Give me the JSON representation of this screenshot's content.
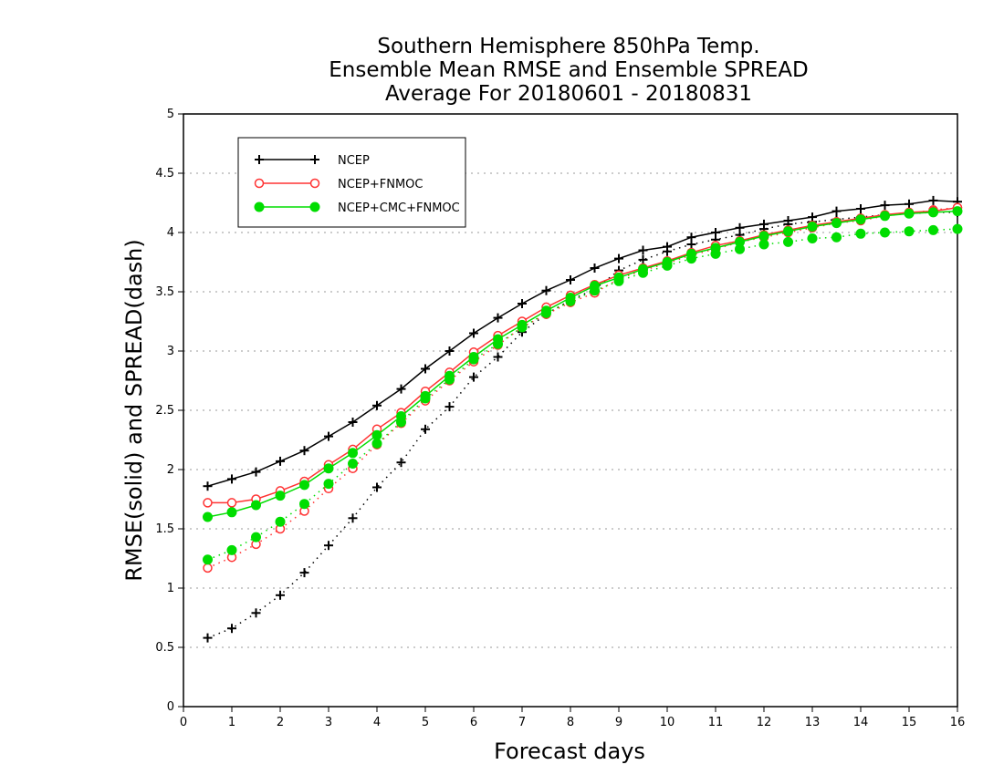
{
  "chart_data": {
    "type": "line",
    "title": [
      "Southern Hemisphere 850hPa Temp.",
      "Ensemble Mean RMSE and Ensemble SPREAD",
      "Average For 20180601 - 20180831"
    ],
    "xlabel": "Forecast days",
    "ylabel": "RMSE(solid) and SPREAD(dash)",
    "xlim": [
      0,
      16
    ],
    "ylim": [
      0,
      5
    ],
    "xticks": [
      0,
      1,
      2,
      3,
      4,
      5,
      6,
      7,
      8,
      9,
      10,
      11,
      12,
      13,
      14,
      15,
      16
    ],
    "xtick_labels": [
      "0",
      "1",
      "2",
      "3",
      "4",
      "5",
      "6",
      "7",
      "8",
      "9",
      "10",
      "11",
      "12",
      "13",
      "14",
      "15",
      "16"
    ],
    "yticks": [
      0,
      0.5,
      1,
      1.5,
      2,
      2.5,
      3,
      3.5,
      4,
      4.5,
      5
    ],
    "ytick_labels": [
      "0",
      "0.5",
      "1",
      "1.5",
      "2",
      "2.5",
      "3",
      "3.5",
      "4",
      "4.5",
      "5"
    ],
    "grid": "horizontal-dotted",
    "legend_position": "top-left",
    "x": [
      0.5,
      1,
      1.5,
      2,
      2.5,
      3,
      3.5,
      4,
      4.5,
      5,
      5.5,
      6,
      6.5,
      7,
      7.5,
      8,
      8.5,
      9,
      9.5,
      10,
      10.5,
      11,
      11.5,
      12,
      12.5,
      13,
      13.5,
      14,
      14.5,
      15,
      15.5,
      16
    ],
    "series": [
      {
        "name": "NCEP",
        "color": "#000000",
        "marker": "plus",
        "rmse": [
          1.86,
          1.92,
          1.98,
          2.07,
          2.16,
          2.28,
          2.4,
          2.54,
          2.68,
          2.85,
          3.0,
          3.15,
          3.28,
          3.4,
          3.51,
          3.6,
          3.7,
          3.78,
          3.85,
          3.88,
          3.96,
          4.0,
          4.04,
          4.07,
          4.1,
          4.13,
          4.18,
          4.2,
          4.23,
          4.24,
          4.27,
          4.26
        ],
        "spread": [
          0.58,
          0.66,
          0.79,
          0.94,
          1.13,
          1.36,
          1.59,
          1.85,
          2.06,
          2.34,
          2.53,
          2.78,
          2.95,
          3.16,
          3.31,
          3.43,
          3.52,
          3.68,
          3.77,
          3.84,
          3.9,
          3.94,
          3.98,
          4.03,
          4.07,
          4.09,
          4.11,
          4.13,
          4.15,
          4.16,
          4.17,
          4.17
        ]
      },
      {
        "name": "NCEP+FNMOC",
        "color": "#ff3333",
        "marker": "open-circle",
        "rmse": [
          1.72,
          1.72,
          1.75,
          1.82,
          1.9,
          2.04,
          2.17,
          2.34,
          2.48,
          2.66,
          2.82,
          2.99,
          3.13,
          3.25,
          3.37,
          3.47,
          3.56,
          3.64,
          3.7,
          3.76,
          3.83,
          3.89,
          3.93,
          3.98,
          4.02,
          4.06,
          4.09,
          4.12,
          4.15,
          4.17,
          4.18,
          4.21
        ],
        "spread": [
          1.17,
          1.26,
          1.37,
          1.5,
          1.65,
          1.84,
          2.01,
          2.21,
          2.39,
          2.58,
          2.75,
          2.91,
          3.05,
          3.2,
          3.31,
          3.41,
          3.49,
          3.61,
          3.68,
          3.74,
          3.81,
          3.86,
          3.92,
          3.96,
          4.0,
          4.04,
          4.08,
          4.1,
          4.14,
          4.16,
          4.19,
          4.21
        ]
      },
      {
        "name": "NCEP+CMC+FNMOC",
        "color": "#00dd00",
        "marker": "filled-circle",
        "rmse": [
          1.6,
          1.64,
          1.7,
          1.78,
          1.87,
          2.01,
          2.14,
          2.29,
          2.45,
          2.62,
          2.79,
          2.95,
          3.1,
          3.22,
          3.34,
          3.45,
          3.55,
          3.62,
          3.69,
          3.75,
          3.82,
          3.87,
          3.92,
          3.97,
          4.01,
          4.05,
          4.08,
          4.11,
          4.14,
          4.16,
          4.17,
          4.18
        ],
        "spread": [
          1.24,
          1.32,
          1.43,
          1.56,
          1.71,
          1.88,
          2.05,
          2.22,
          2.4,
          2.6,
          2.76,
          2.93,
          3.06,
          3.2,
          3.32,
          3.42,
          3.51,
          3.59,
          3.66,
          3.72,
          3.78,
          3.82,
          3.86,
          3.9,
          3.92,
          3.95,
          3.96,
          3.99,
          4.0,
          4.01,
          4.02,
          4.03
        ]
      }
    ]
  }
}
